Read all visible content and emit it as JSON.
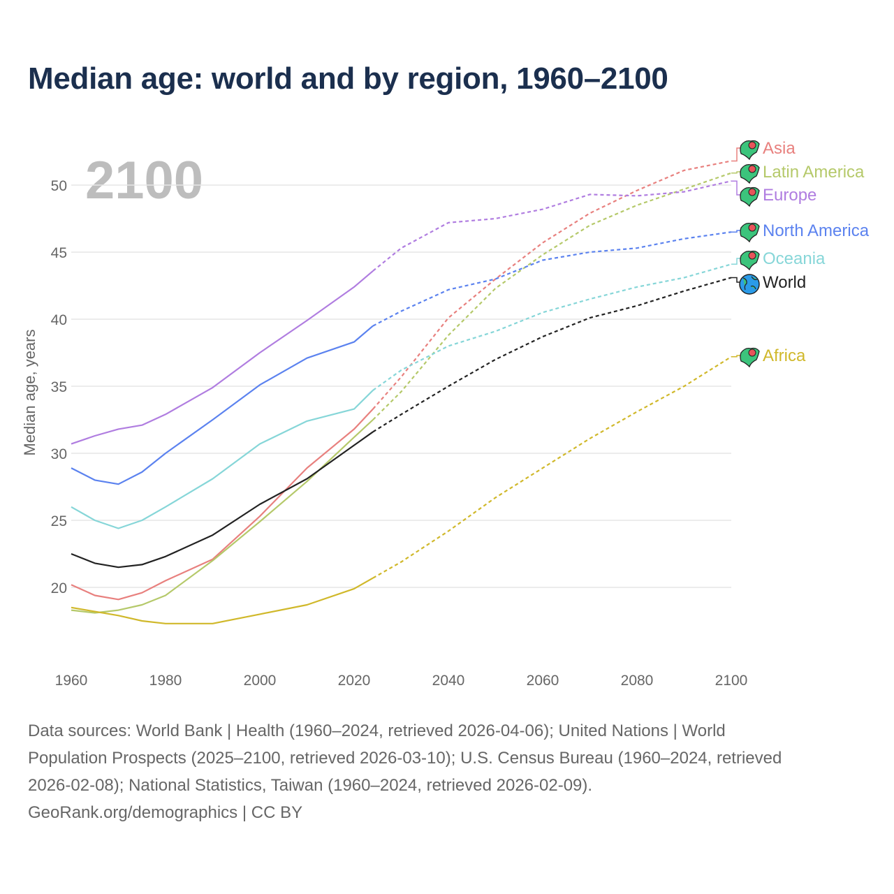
{
  "title": "Median age: world and by region, 1960–2100",
  "year_display": "2100",
  "chart_data": {
    "type": "line",
    "title": "Median age: world and by region, 1960–2100",
    "xlabel": "",
    "ylabel": "Median age, years",
    "xlim": [
      1960,
      2100
    ],
    "ylim": [
      15,
      53
    ],
    "xticks": [
      1960,
      1980,
      2000,
      2020,
      2040,
      2060,
      2080,
      2100
    ],
    "yticks": [
      20,
      25,
      30,
      35,
      40,
      45,
      50
    ],
    "grid": true,
    "legend": "right, end-of-line labels",
    "projection_start": 2024,
    "x": [
      1960,
      1965,
      1970,
      1975,
      1980,
      1990,
      2000,
      2010,
      2020,
      2024,
      2030,
      2040,
      2050,
      2060,
      2070,
      2080,
      2090,
      2100
    ],
    "series": [
      {
        "name": "Asia",
        "color": "#e8807e",
        "icon": "asia-map-icon",
        "values": [
          20.2,
          19.4,
          19.1,
          19.6,
          20.5,
          22.1,
          25.3,
          28.9,
          31.8,
          33.3,
          35.7,
          40.1,
          43.0,
          45.7,
          47.9,
          49.6,
          51.1,
          51.8
        ]
      },
      {
        "name": "Latin America",
        "color": "#b5c96a",
        "icon": "latin-america-map-icon",
        "values": [
          18.3,
          18.1,
          18.3,
          18.7,
          19.4,
          22.0,
          24.9,
          27.9,
          31.2,
          32.5,
          34.6,
          38.8,
          42.3,
          44.8,
          47.0,
          48.5,
          49.7,
          50.9
        ]
      },
      {
        "name": "Europe",
        "color": "#b07de0",
        "icon": "europe-map-icon",
        "values": [
          30.7,
          31.3,
          31.8,
          32.1,
          32.9,
          34.9,
          37.5,
          39.9,
          42.4,
          43.6,
          45.3,
          47.2,
          47.5,
          48.2,
          49.3,
          49.2,
          49.5,
          50.3
        ]
      },
      {
        "name": "North America",
        "color": "#5b82ef",
        "icon": "north-america-map-icon",
        "values": [
          28.9,
          28.0,
          27.7,
          28.6,
          30.0,
          32.5,
          35.1,
          37.1,
          38.3,
          39.5,
          40.6,
          42.2,
          43.0,
          44.4,
          45.0,
          45.3,
          46.0,
          46.5
        ]
      },
      {
        "name": "Oceania",
        "color": "#86d6d8",
        "icon": "oceania-map-icon",
        "values": [
          26.0,
          25.0,
          24.4,
          25.0,
          26.0,
          28.1,
          30.7,
          32.4,
          33.3,
          34.7,
          36.2,
          38.0,
          39.1,
          40.5,
          41.5,
          42.4,
          43.1,
          44.1
        ]
      },
      {
        "name": "World",
        "color": "#222222",
        "icon": "globe-icon",
        "values": [
          22.5,
          21.8,
          21.5,
          21.7,
          22.3,
          23.9,
          26.2,
          28.1,
          30.6,
          31.6,
          32.9,
          35.0,
          37.0,
          38.7,
          40.1,
          41.0,
          42.1,
          43.1
        ]
      },
      {
        "name": "Africa",
        "color": "#d0b82a",
        "icon": "africa-map-icon",
        "values": [
          18.5,
          18.2,
          17.9,
          17.5,
          17.3,
          17.3,
          18.0,
          18.7,
          19.9,
          20.7,
          21.9,
          24.2,
          26.7,
          28.9,
          31.1,
          33.1,
          35.0,
          37.2
        ]
      }
    ]
  },
  "footer": {
    "lines": [
      "Data sources: World Bank | Health (1960–2024, retrieved 2026-04-06); United Nations | World",
      "Population Prospects (2025–2100, retrieved 2026-03-10); U.S. Census Bureau (1960–2024, retrieved",
      "2026-02-08); National Statistics, Taiwan (1960–2024, retrieved 2026-02-09).",
      "GeoRank.org/demographics | CC BY"
    ]
  }
}
